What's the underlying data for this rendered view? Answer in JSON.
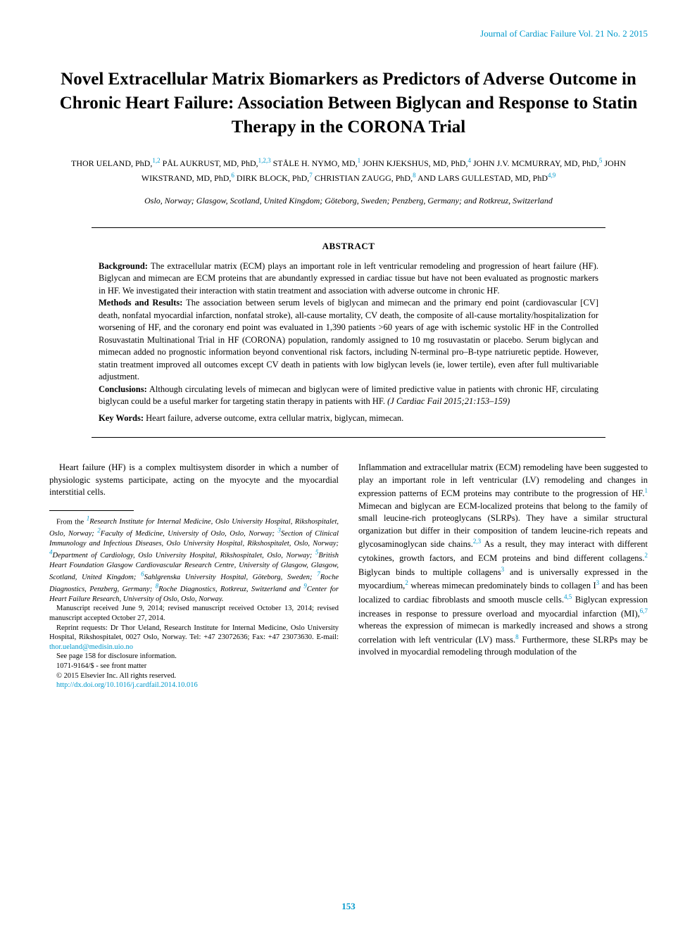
{
  "journal_header": "Journal of Cardiac Failure Vol. 21 No. 2 2015",
  "title": "Novel Extracellular Matrix Biomarkers as Predictors of Adverse Outcome in Chronic Heart Failure: Association Between Biglycan and Response to Statin Therapy in the CORONA Trial",
  "authors_html": "THOR UELAND, PhD,<span class='sup'>1,2</span> PÅL AUKRUST, MD, PhD,<span class='sup'>1,2,3</span> STÅLE H. NYMO, MD,<span class='sup'>1</span> JOHN KJEKSHUS, MD, PhD,<span class='sup'>4</span> JOHN J.V. MCMURRAY, MD, PhD,<span class='sup'>5</span> JOHN WIKSTRAND, MD, PhD,<span class='sup'>6</span> DIRK BLOCK, PhD,<span class='sup'>7</span> CHRISTIAN ZAUGG, PhD,<span class='sup'>8</span> AND LARS GULLESTAD, MD, PhD<span class='sup'>4,9</span>",
  "locations": "Oslo, Norway; Glasgow, Scotland, United Kingdom; Göteborg, Sweden; Penzberg, Germany; and Rotkreuz, Switzerland",
  "abstract": {
    "heading": "ABSTRACT",
    "background_label": "Background:",
    "background": " The extracellular matrix (ECM) plays an important role in left ventricular remodeling and progression of heart failure (HF). Biglycan and mimecan are ECM proteins that are abundantly expressed in cardiac tissue but have not been evaluated as prognostic markers in HF. We investigated their interaction with statin treatment and association with adverse outcome in chronic HF.",
    "methods_label": "Methods and Results:",
    "methods": " The association between serum levels of biglycan and mimecan and the primary end point (cardiovascular [CV] death, nonfatal myocardial infarction, nonfatal stroke), all-cause mortality, CV death, the composite of all-cause mortality/hospitalization for worsening of HF, and the coronary end point was evaluated in 1,390 patients >60 years of age with ischemic systolic HF in the Controlled Rosuvastatin Multinational Trial in HF (CORONA) population, randomly assigned to 10 mg rosuvastatin or placebo. Serum biglycan and mimecan added no prognostic information beyond conventional risk factors, including N-terminal pro–B-type natriuretic peptide. However, statin treatment improved all outcomes except CV death in patients with low biglycan levels (ie, lower tertile), even after full multivariable adjustment.",
    "conclusions_label": "Conclusions:",
    "conclusions": " Although circulating levels of mimecan and biglycan were of limited predictive value in patients with chronic HF, circulating biglycan could be a useful marker for targeting statin therapy in patients with HF. ",
    "citation": "(J Cardiac Fail 2015;21:153–159)",
    "keywords_label": "Key Words:",
    "keywords": " Heart failure, adverse outcome, extra cellular matrix, biglycan, mimecan."
  },
  "body": {
    "col1_p1": "Heart failure (HF) is a complex multisystem disorder in which a number of physiologic systems participate, acting on the myocyte and the myocardial interstitial cells.",
    "col2_p1_html": "Inflammation and extracellular matrix (ECM) remodeling have been suggested to play an important role in left ventricular (LV) remodeling and changes in expression patterns of ECM proteins may contribute to the progression of HF.<span class='ref-sup'>1</span> Mimecan and biglycan are ECM-localized proteins that belong to the family of small leucine-rich proteoglycans (SLRPs). They have a similar structural organization but differ in their composition of tandem leucine-rich repeats and glycosaminoglycan side chains.<span class='ref-sup'>2,3</span> As a result, they may interact with different cytokines, growth factors, and ECM proteins and bind different collagens.<span class='ref-sup'>2</span> Biglycan binds to multiple collagens<span class='ref-sup'>3</span> and is universally expressed in the myocardium,<span class='ref-sup'>2</span> whereas mimecan predominately binds to collagen I<span class='ref-sup'>3</span> and has been localized to cardiac fibroblasts and smooth muscle cells.<span class='ref-sup'>4,5</span> Biglycan expression increases in response to pressure overload and myocardial infarction (MI),<span class='ref-sup'>6,7</span> whereas the expression of mimecan is markedly increased and shows a strong correlation with left ventricular (LV) mass.<span class='ref-sup'>8</span> Furthermore, these SLRPs may be involved in myocardial remodeling through modulation of the"
  },
  "footnotes": {
    "affiliations_html": "From the <span class='ital'><span class='ref-sup'>1</span>Research Institute for Internal Medicine, Oslo University Hospital, Rikshospitalet, Oslo, Norway; <span class='ref-sup'>2</span>Faculty of Medicine, University of Oslo, Oslo, Norway; <span class='ref-sup'>3</span>Section of Clinical Immunology and Infectious Diseases, Oslo University Hospital, Rikshospitalet, Oslo, Norway; <span class='ref-sup'>4</span>Department of Cardiology, Oslo University Hospital, Rikshospitalet, Oslo, Norway; <span class='ref-sup'>5</span>British Heart Foundation Glasgow Cardiovascular Research Centre, University of Glasgow, Glasgow, Scotland, United Kingdom; <span class='ref-sup'>6</span>Sahlgrenska University Hospital, Göteborg, Sweden; <span class='ref-sup'>7</span>Roche Diagnostics, Penzberg, Germany; <span class='ref-sup'>8</span>Roche Diagnostics, Rotkreuz, Switzerland and <span class='ref-sup'>9</span>Center for Heart Failure Research, University of Oslo, Oslo, Norway.</span>",
    "manuscript": "Manuscript received June 9, 2014; revised manuscript received October 13, 2014; revised manuscript accepted October 27, 2014.",
    "reprint_html": "Reprint requests: Dr Thor Ueland, Research Institute for Internal Medicine, Oslo University Hospital, Rikshospitalet, 0027 Oslo, Norway. Tel: +47 23072636; Fax: +47 23073630. E-mail: <span class='link'>thor.ueland@medisin.uio.no</span>",
    "see_page": "See page 158 for disclosure information.",
    "issn": "1071-9164/$ - see front matter",
    "copyright": "© 2015 Elsevier Inc. All rights reserved.",
    "doi": "http://dx.doi.org/10.1016/j.cardfail.2014.10.016"
  },
  "page_number": "153",
  "colors": {
    "accent": "#0099cc",
    "text": "#000000",
    "background": "#ffffff"
  }
}
